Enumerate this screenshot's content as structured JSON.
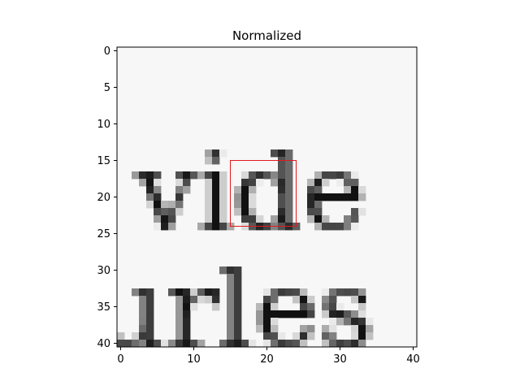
{
  "chart_data": {
    "type": "heatmap",
    "title": "Normalized",
    "xlabel": "",
    "ylabel": "",
    "xlim": [
      -0.5,
      40.5
    ],
    "ylim": [
      40.5,
      -0.5
    ],
    "x_ticks": [
      0,
      10,
      20,
      30,
      40
    ],
    "y_ticks": [
      0,
      5,
      10,
      15,
      20,
      25,
      30,
      35,
      40
    ],
    "colormap": "gray",
    "grid": false,
    "visible_text": [
      "vide",
      "urles"
    ],
    "highlight_box": {
      "x0": 15,
      "y0": 15,
      "x1": 24,
      "y1": 24,
      "color": "#e31a1c"
    }
  }
}
